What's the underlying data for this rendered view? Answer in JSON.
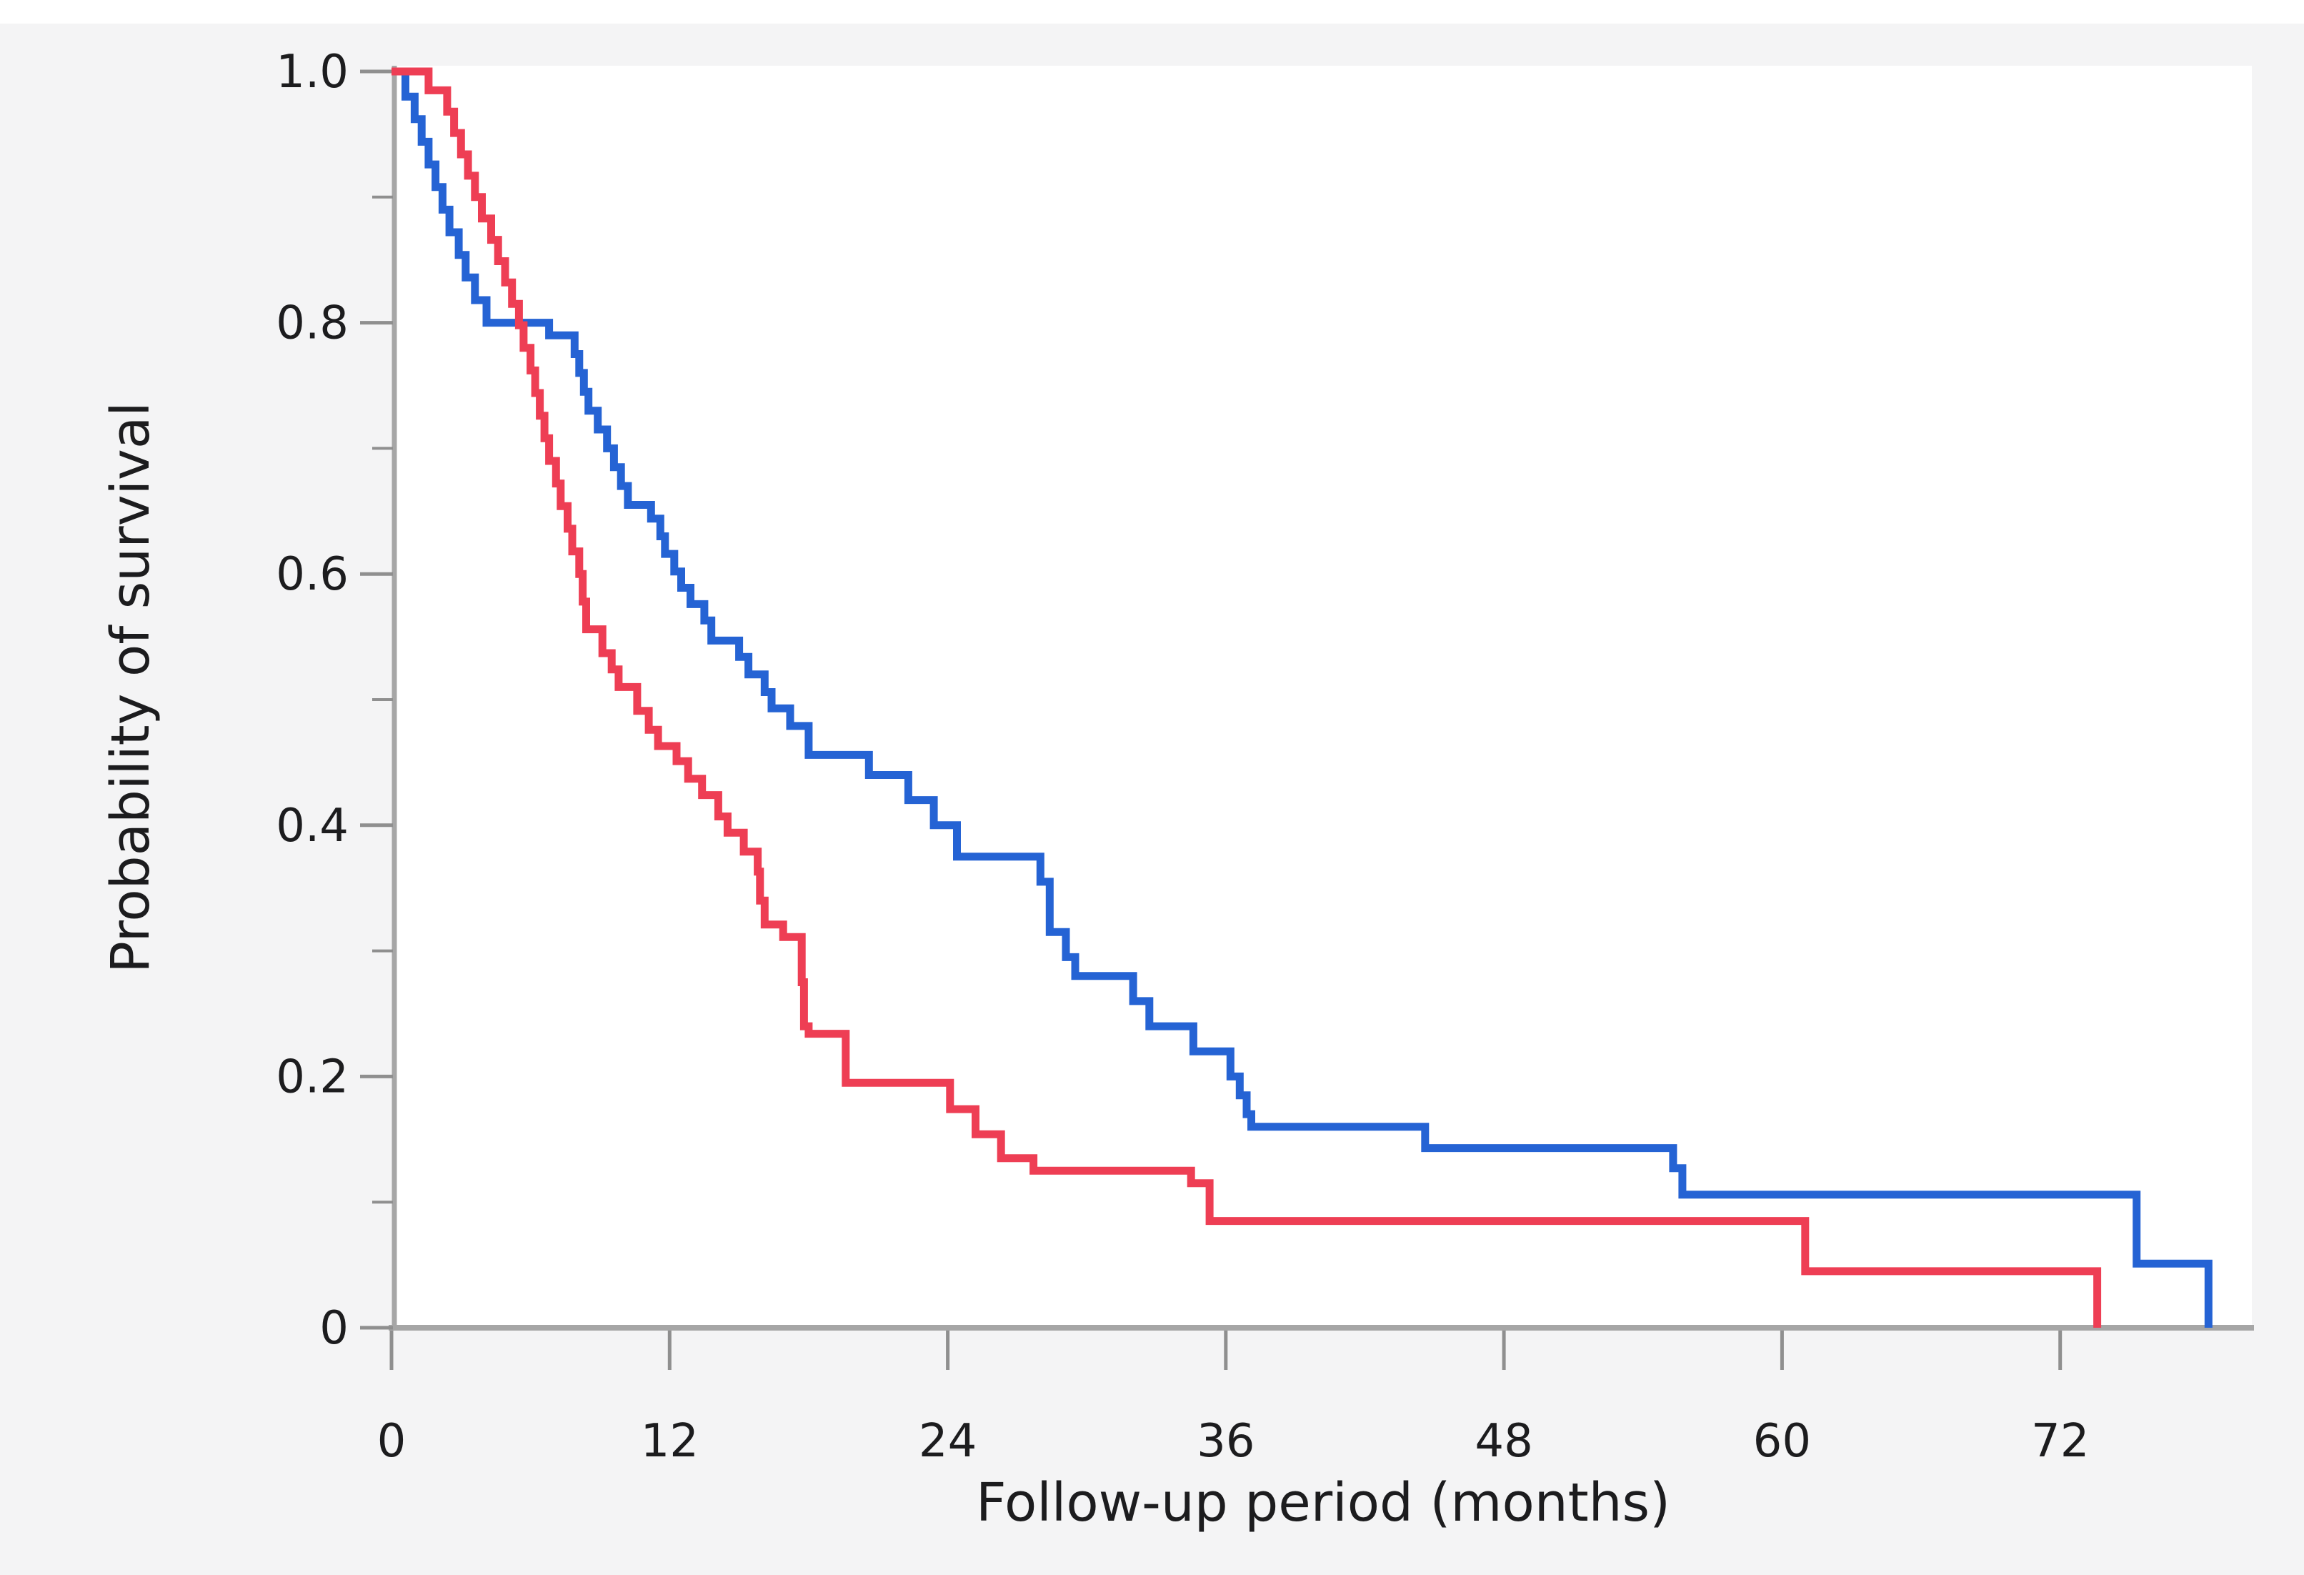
{
  "figure": {
    "page_background": "#ffffff",
    "panel_background": "#f4f4f5",
    "plot_background": "#ffffff",
    "axis_color": "#a6a6a6",
    "tick_color": "#8f8f8f",
    "text_color": "#1c1c1e"
  },
  "chart_data": {
    "type": "line",
    "subtype": "kaplan-meier-step-survival",
    "title": "",
    "xlabel": "Follow-up period (months)",
    "ylabel": "Probability of survival",
    "xlim": [
      0,
      80.5
    ],
    "ylim": [
      0,
      1.0
    ],
    "grid": false,
    "legend_position": "none",
    "x_ticks": [
      0,
      12,
      24,
      36,
      48,
      60,
      72
    ],
    "x_tick_labels": [
      "0",
      "12",
      "24",
      "36",
      "48",
      "60",
      "72"
    ],
    "y_ticks": [
      1.0,
      0.8,
      0.6,
      0.4,
      0.2,
      0
    ],
    "y_tick_labels": [
      "1.0",
      "0.8",
      "0.6",
      "0.4",
      "0.2",
      "0"
    ],
    "y_minor_ticks": [
      0.9,
      0.7,
      0.5,
      0.3,
      0.1
    ],
    "series": [
      {
        "name": "blue",
        "color": "#2563d4",
        "points": [
          [
            0,
            1.0
          ],
          [
            0.6,
            0.98
          ],
          [
            1.0,
            0.962
          ],
          [
            1.3,
            0.944
          ],
          [
            1.6,
            0.926
          ],
          [
            1.9,
            0.908
          ],
          [
            2.2,
            0.89
          ],
          [
            2.5,
            0.872
          ],
          [
            2.9,
            0.854
          ],
          [
            3.2,
            0.836
          ],
          [
            3.6,
            0.818
          ],
          [
            4.1,
            0.8
          ],
          [
            6.8,
            0.79
          ],
          [
            7.9,
            0.775
          ],
          [
            8.1,
            0.76
          ],
          [
            8.3,
            0.745
          ],
          [
            8.5,
            0.73
          ],
          [
            8.9,
            0.715
          ],
          [
            9.3,
            0.7
          ],
          [
            9.6,
            0.685
          ],
          [
            9.9,
            0.67
          ],
          [
            10.2,
            0.655
          ],
          [
            11.2,
            0.644
          ],
          [
            11.6,
            0.63
          ],
          [
            11.8,
            0.616
          ],
          [
            12.2,
            0.602
          ],
          [
            12.5,
            0.589
          ],
          [
            12.9,
            0.576
          ],
          [
            13.5,
            0.563
          ],
          [
            13.8,
            0.547
          ],
          [
            15.0,
            0.534
          ],
          [
            15.4,
            0.52
          ],
          [
            16.1,
            0.506
          ],
          [
            16.4,
            0.493
          ],
          [
            17.2,
            0.479
          ],
          [
            18.0,
            0.456
          ],
          [
            20.6,
            0.44
          ],
          [
            22.3,
            0.42
          ],
          [
            23.4,
            0.4
          ],
          [
            24.4,
            0.375
          ],
          [
            28.0,
            0.355
          ],
          [
            28.4,
            0.315
          ],
          [
            29.1,
            0.295
          ],
          [
            29.5,
            0.28
          ],
          [
            32.0,
            0.26
          ],
          [
            32.7,
            0.24
          ],
          [
            34.6,
            0.22
          ],
          [
            36.2,
            0.2
          ],
          [
            36.6,
            0.185
          ],
          [
            36.9,
            0.17
          ],
          [
            37.1,
            0.16
          ],
          [
            44.6,
            0.143
          ],
          [
            55.3,
            0.127
          ],
          [
            55.7,
            0.106
          ],
          [
            75.3,
            0.051
          ],
          [
            78.4,
            0.0
          ]
        ]
      },
      {
        "name": "red",
        "color": "#ee3e54",
        "points": [
          [
            0,
            1.0
          ],
          [
            1.6,
            0.985
          ],
          [
            2.4,
            0.968
          ],
          [
            2.7,
            0.951
          ],
          [
            3.0,
            0.934
          ],
          [
            3.3,
            0.917
          ],
          [
            3.6,
            0.9
          ],
          [
            3.9,
            0.883
          ],
          [
            4.3,
            0.866
          ],
          [
            4.6,
            0.849
          ],
          [
            4.9,
            0.832
          ],
          [
            5.2,
            0.815
          ],
          [
            5.5,
            0.798
          ],
          [
            5.7,
            0.78
          ],
          [
            6.0,
            0.762
          ],
          [
            6.2,
            0.744
          ],
          [
            6.4,
            0.726
          ],
          [
            6.6,
            0.708
          ],
          [
            6.8,
            0.69
          ],
          [
            7.1,
            0.672
          ],
          [
            7.3,
            0.654
          ],
          [
            7.6,
            0.636
          ],
          [
            7.8,
            0.618
          ],
          [
            8.1,
            0.6
          ],
          [
            8.25,
            0.578
          ],
          [
            8.4,
            0.556
          ],
          [
            9.1,
            0.537
          ],
          [
            9.5,
            0.524
          ],
          [
            9.8,
            0.51
          ],
          [
            10.6,
            0.491
          ],
          [
            11.1,
            0.476
          ],
          [
            11.5,
            0.463
          ],
          [
            12.3,
            0.451
          ],
          [
            12.8,
            0.437
          ],
          [
            13.4,
            0.424
          ],
          [
            14.1,
            0.407
          ],
          [
            14.5,
            0.394
          ],
          [
            15.2,
            0.379
          ],
          [
            15.8,
            0.363
          ],
          [
            15.9,
            0.34
          ],
          [
            16.1,
            0.321
          ],
          [
            16.9,
            0.311
          ],
          [
            17.7,
            0.275
          ],
          [
            17.8,
            0.24
          ],
          [
            18.0,
            0.234
          ],
          [
            19.6,
            0.195
          ],
          [
            24.1,
            0.174
          ],
          [
            25.2,
            0.154
          ],
          [
            26.3,
            0.135
          ],
          [
            27.7,
            0.125
          ],
          [
            34.5,
            0.115
          ],
          [
            35.3,
            0.085
          ],
          [
            61.0,
            0.045
          ],
          [
            73.6,
            0.0
          ]
        ]
      }
    ]
  }
}
